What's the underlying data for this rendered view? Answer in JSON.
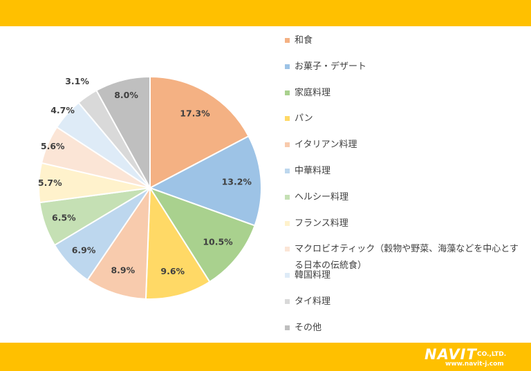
{
  "chart_data": {
    "type": "pie",
    "title": "",
    "categories": [
      "和食",
      "お菓子・デザート",
      "家庭料理",
      "パン",
      "イタリアン料理",
      "中華料理",
      "ヘルシー料理",
      "フランス料理",
      "マクロビオティック（穀物や野菜、海藻などを中心とする日本の伝統食）",
      "韓国料理",
      "タイ料理",
      "その他"
    ],
    "values": [
      17.3,
      13.2,
      10.5,
      9.6,
      8.9,
      6.9,
      6.5,
      5.7,
      5.6,
      4.7,
      3.1,
      8.0
    ],
    "value_labels": [
      "17.3%",
      "13.2%",
      "10.5%",
      "9.6%",
      "8.9%",
      "6.9%",
      "6.5%",
      "5.7%",
      "5.6%",
      "4.7%",
      "3.1%",
      "8.0%"
    ],
    "colors": [
      "#F4B183",
      "#9DC3E6",
      "#A9D18E",
      "#FFD966",
      "#F8CBAD",
      "#BDD7EE",
      "#C5E0B4",
      "#FFF2CC",
      "#FBE5D6",
      "#DEEBF7",
      "#D9D9D9",
      "#BFBFBF"
    ],
    "legend_position": "right"
  },
  "logo": {
    "word": "NAVIT",
    "company": "CO.,LTD.",
    "url": "www.navit-j.com"
  }
}
